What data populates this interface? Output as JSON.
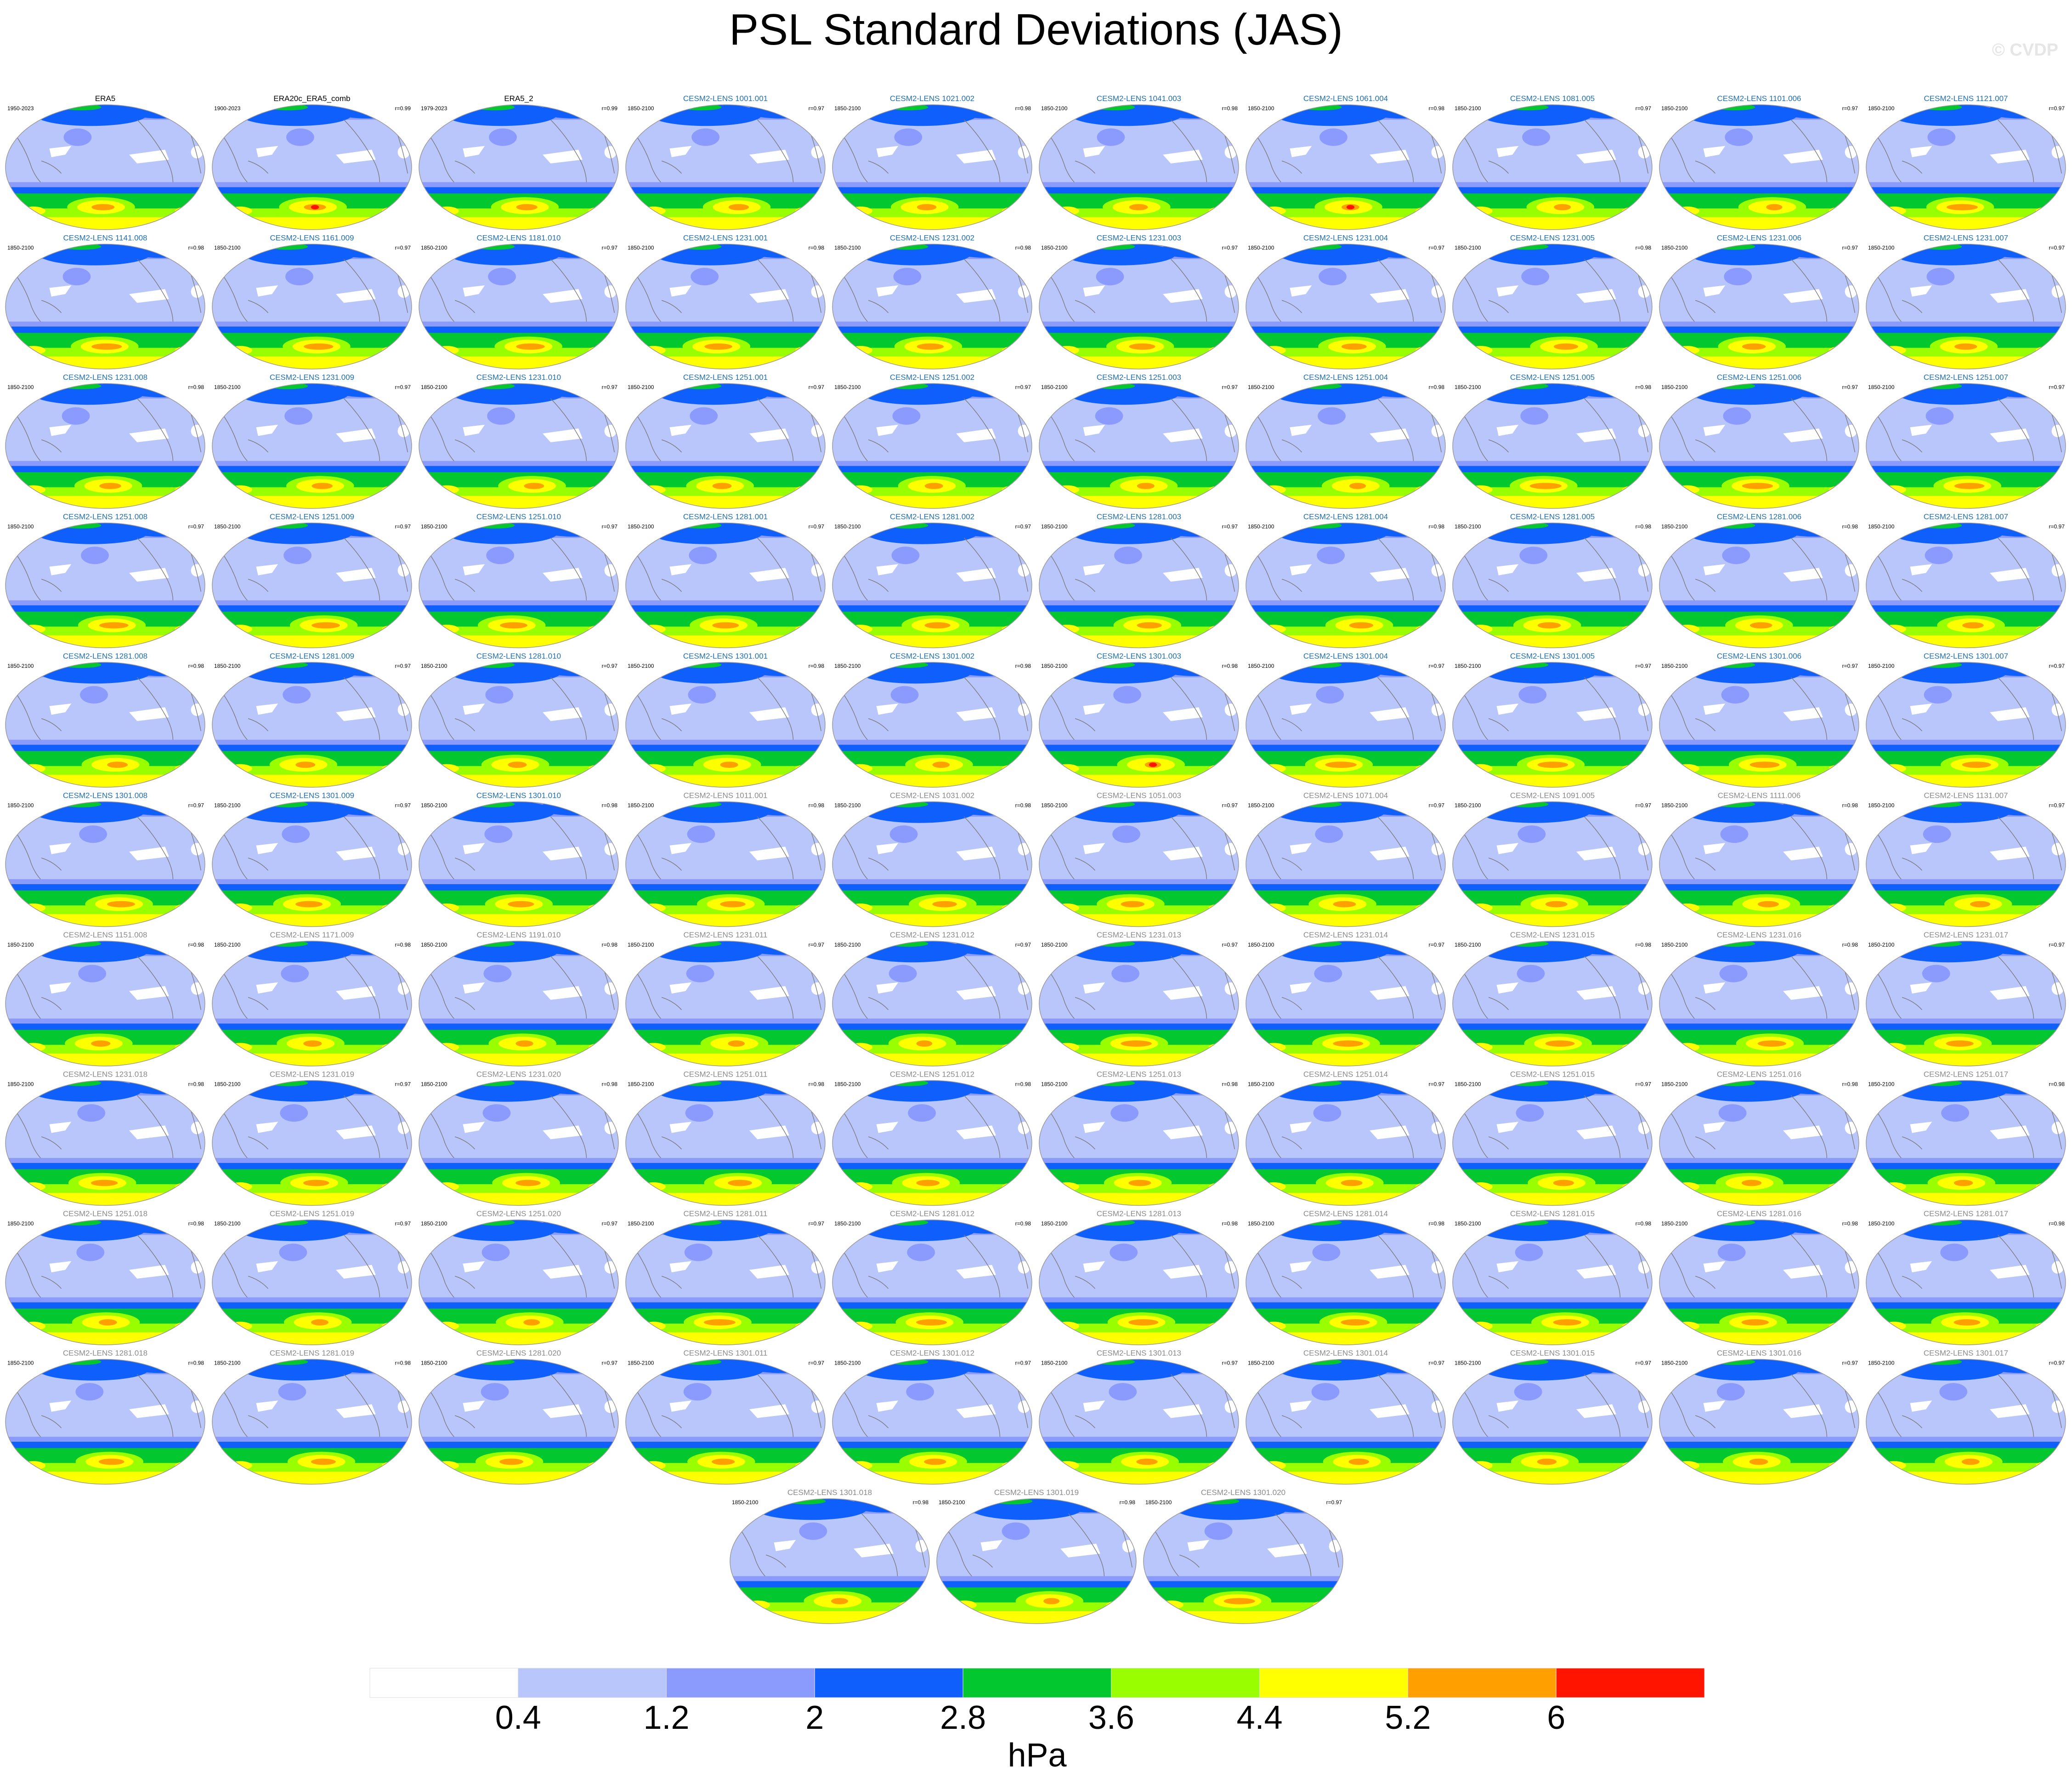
{
  "title": "PSL Standard Deviations (JAS)",
  "copyright": "© CVDP",
  "colors": {
    "land": "#ffffff",
    "coast": "#7a7a7a",
    "obs_title": "#000000",
    "model_title": "#1f6fb0",
    "model_title_faded": "#8a8a8a"
  },
  "chart_data": {
    "type": "heatmap",
    "variable": "PSL standard deviation",
    "season": "JAS",
    "colorbar": {
      "label": "hPa",
      "ticks": [
        "0.4",
        "1.2",
        "2",
        "2.8",
        "3.6",
        "4.4",
        "5.2",
        "6"
      ],
      "levels": [
        0.4,
        1.2,
        2,
        2.8,
        3.6,
        4.4,
        5.2,
        6
      ],
      "colors": [
        "#ffffff",
        "#b8c6fb",
        "#8a9bfd",
        "#0f5ffd",
        "#03c72e",
        "#99ff00",
        "#ffff00",
        "#ffa000",
        "#ff1400"
      ]
    },
    "panels": [
      {
        "title": "ERA5",
        "period": "1950-2023",
        "r": "",
        "kind": "obs"
      },
      {
        "title": "ERA20c_ERA5_comb",
        "period": "1900-2023",
        "r": "r=0.99",
        "kind": "obs"
      },
      {
        "title": "ERA5_2",
        "period": "1979-2023",
        "r": "r=0.99",
        "kind": "obs"
      },
      {
        "title": "CESM2-LENS 1001.001",
        "period": "1850-2100",
        "r": "r=0.97",
        "kind": "model"
      },
      {
        "title": "CESM2-LENS 1021.002",
        "period": "1850-2100",
        "r": "r=0.98",
        "kind": "model"
      },
      {
        "title": "CESM2-LENS 1041.003",
        "period": "1850-2100",
        "r": "r=0.98",
        "kind": "model"
      },
      {
        "title": "CESM2-LENS 1061.004",
        "period": "1850-2100",
        "r": "r=0.98",
        "kind": "model"
      },
      {
        "title": "CESM2-LENS 1081.005",
        "period": "1850-2100",
        "r": "r=0.97",
        "kind": "model"
      },
      {
        "title": "CESM2-LENS 1101.006",
        "period": "1850-2100",
        "r": "r=0.97",
        "kind": "model"
      },
      {
        "title": "CESM2-LENS 1121.007",
        "period": "1850-2100",
        "r": "r=0.97",
        "kind": "model"
      },
      {
        "title": "CESM2-LENS 1141.008",
        "period": "1850-2100",
        "r": "r=0.98",
        "kind": "model"
      },
      {
        "title": "CESM2-LENS 1161.009",
        "period": "1850-2100",
        "r": "r=0.97",
        "kind": "model"
      },
      {
        "title": "CESM2-LENS 1181.010",
        "period": "1850-2100",
        "r": "r=0.97",
        "kind": "model"
      },
      {
        "title": "CESM2-LENS 1231.001",
        "period": "1850-2100",
        "r": "r=0.98",
        "kind": "model"
      },
      {
        "title": "CESM2-LENS 1231.002",
        "period": "1850-2100",
        "r": "r=0.98",
        "kind": "model"
      },
      {
        "title": "CESM2-LENS 1231.003",
        "period": "1850-2100",
        "r": "r=0.97",
        "kind": "model"
      },
      {
        "title": "CESM2-LENS 1231.004",
        "period": "1850-2100",
        "r": "r=0.97",
        "kind": "model"
      },
      {
        "title": "CESM2-LENS 1231.005",
        "period": "1850-2100",
        "r": "r=0.98",
        "kind": "model"
      },
      {
        "title": "CESM2-LENS 1231.006",
        "period": "1850-2100",
        "r": "r=0.97",
        "kind": "model"
      },
      {
        "title": "CESM2-LENS 1231.007",
        "period": "1850-2100",
        "r": "r=0.97",
        "kind": "model"
      },
      {
        "title": "CESM2-LENS 1231.008",
        "period": "1850-2100",
        "r": "r=0.98",
        "kind": "model"
      },
      {
        "title": "CESM2-LENS 1231.009",
        "period": "1850-2100",
        "r": "r=0.97",
        "kind": "model"
      },
      {
        "title": "CESM2-LENS 1231.010",
        "period": "1850-2100",
        "r": "r=0.97",
        "kind": "model"
      },
      {
        "title": "CESM2-LENS 1251.001",
        "period": "1850-2100",
        "r": "r=0.97",
        "kind": "model"
      },
      {
        "title": "CESM2-LENS 1251.002",
        "period": "1850-2100",
        "r": "r=0.97",
        "kind": "model"
      },
      {
        "title": "CESM2-LENS 1251.003",
        "period": "1850-2100",
        "r": "r=0.97",
        "kind": "model"
      },
      {
        "title": "CESM2-LENS 1251.004",
        "period": "1850-2100",
        "r": "r=0.98",
        "kind": "model"
      },
      {
        "title": "CESM2-LENS 1251.005",
        "period": "1850-2100",
        "r": "r=0.98",
        "kind": "model"
      },
      {
        "title": "CESM2-LENS 1251.006",
        "period": "1850-2100",
        "r": "r=0.97",
        "kind": "model"
      },
      {
        "title": "CESM2-LENS 1251.007",
        "period": "1850-2100",
        "r": "r=0.97",
        "kind": "model"
      },
      {
        "title": "CESM2-LENS 1251.008",
        "period": "1850-2100",
        "r": "r=0.97",
        "kind": "model"
      },
      {
        "title": "CESM2-LENS 1251.009",
        "period": "1850-2100",
        "r": "r=0.97",
        "kind": "model"
      },
      {
        "title": "CESM2-LENS 1251.010",
        "period": "1850-2100",
        "r": "r=0.97",
        "kind": "model"
      },
      {
        "title": "CESM2-LENS 1281.001",
        "period": "1850-2100",
        "r": "r=0.97",
        "kind": "model"
      },
      {
        "title": "CESM2-LENS 1281.002",
        "period": "1850-2100",
        "r": "r=0.97",
        "kind": "model"
      },
      {
        "title": "CESM2-LENS 1281.003",
        "period": "1850-2100",
        "r": "r=0.97",
        "kind": "model"
      },
      {
        "title": "CESM2-LENS 1281.004",
        "period": "1850-2100",
        "r": "r=0.98",
        "kind": "model"
      },
      {
        "title": "CESM2-LENS 1281.005",
        "period": "1850-2100",
        "r": "r=0.98",
        "kind": "model"
      },
      {
        "title": "CESM2-LENS 1281.006",
        "period": "1850-2100",
        "r": "r=0.98",
        "kind": "model"
      },
      {
        "title": "CESM2-LENS 1281.007",
        "period": "1850-2100",
        "r": "r=0.97",
        "kind": "model"
      },
      {
        "title": "CESM2-LENS 1281.008",
        "period": "1850-2100",
        "r": "r=0.98",
        "kind": "model"
      },
      {
        "title": "CESM2-LENS 1281.009",
        "period": "1850-2100",
        "r": "r=0.97",
        "kind": "model"
      },
      {
        "title": "CESM2-LENS 1281.010",
        "period": "1850-2100",
        "r": "r=0.97",
        "kind": "model"
      },
      {
        "title": "CESM2-LENS 1301.001",
        "period": "1850-2100",
        "r": "r=0.98",
        "kind": "model"
      },
      {
        "title": "CESM2-LENS 1301.002",
        "period": "1850-2100",
        "r": "r=0.98",
        "kind": "model"
      },
      {
        "title": "CESM2-LENS 1301.003",
        "period": "1850-2100",
        "r": "r=0.98",
        "kind": "model"
      },
      {
        "title": "CESM2-LENS 1301.004",
        "period": "1850-2100",
        "r": "r=0.97",
        "kind": "model"
      },
      {
        "title": "CESM2-LENS 1301.005",
        "period": "1850-2100",
        "r": "r=0.97",
        "kind": "model"
      },
      {
        "title": "CESM2-LENS 1301.006",
        "period": "1850-2100",
        "r": "r=0.97",
        "kind": "model"
      },
      {
        "title": "CESM2-LENS 1301.007",
        "period": "1850-2100",
        "r": "r=0.97",
        "kind": "model"
      },
      {
        "title": "CESM2-LENS 1301.008",
        "period": "1850-2100",
        "r": "r=0.97",
        "kind": "model"
      },
      {
        "title": "CESM2-LENS 1301.009",
        "period": "1850-2100",
        "r": "r=0.97",
        "kind": "model"
      },
      {
        "title": "CESM2-LENS 1301.010",
        "period": "1850-2100",
        "r": "r=0.98",
        "kind": "model"
      },
      {
        "title": "CESM2-LENS 1011.001",
        "period": "1850-2100",
        "r": "r=0.98",
        "kind": "model_faded"
      },
      {
        "title": "CESM2-LENS 1031.002",
        "period": "1850-2100",
        "r": "r=0.98",
        "kind": "model_faded"
      },
      {
        "title": "CESM2-LENS 1051.003",
        "period": "1850-2100",
        "r": "r=0.97",
        "kind": "model_faded"
      },
      {
        "title": "CESM2-LENS 1071.004",
        "period": "1850-2100",
        "r": "r=0.97",
        "kind": "model_faded"
      },
      {
        "title": "CESM2-LENS 1091.005",
        "period": "1850-2100",
        "r": "r=0.97",
        "kind": "model_faded"
      },
      {
        "title": "CESM2-LENS 1111.006",
        "period": "1850-2100",
        "r": "r=0.98",
        "kind": "model_faded"
      },
      {
        "title": "CESM2-LENS 1131.007",
        "period": "1850-2100",
        "r": "r=0.97",
        "kind": "model_faded"
      },
      {
        "title": "CESM2-LENS 1151.008",
        "period": "1850-2100",
        "r": "r=0.98",
        "kind": "model_faded"
      },
      {
        "title": "CESM2-LENS 1171.009",
        "period": "1850-2100",
        "r": "r=0.98",
        "kind": "model_faded"
      },
      {
        "title": "CESM2-LENS 1191.010",
        "period": "1850-2100",
        "r": "r=0.98",
        "kind": "model_faded"
      },
      {
        "title": "CESM2-LENS 1231.011",
        "period": "1850-2100",
        "r": "r=0.97",
        "kind": "model_faded"
      },
      {
        "title": "CESM2-LENS 1231.012",
        "period": "1850-2100",
        "r": "r=0.97",
        "kind": "model_faded"
      },
      {
        "title": "CESM2-LENS 1231.013",
        "period": "1850-2100",
        "r": "r=0.97",
        "kind": "model_faded"
      },
      {
        "title": "CESM2-LENS 1231.014",
        "period": "1850-2100",
        "r": "r=0.97",
        "kind": "model_faded"
      },
      {
        "title": "CESM2-LENS 1231.015",
        "period": "1850-2100",
        "r": "r=0.98",
        "kind": "model_faded"
      },
      {
        "title": "CESM2-LENS 1231.016",
        "period": "1850-2100",
        "r": "r=0.98",
        "kind": "model_faded"
      },
      {
        "title": "CESM2-LENS 1231.017",
        "period": "1850-2100",
        "r": "r=0.97",
        "kind": "model_faded"
      },
      {
        "title": "CESM2-LENS 1231.018",
        "period": "1850-2100",
        "r": "r=0.98",
        "kind": "model_faded"
      },
      {
        "title": "CESM2-LENS 1231.019",
        "period": "1850-2100",
        "r": "r=0.97",
        "kind": "model_faded"
      },
      {
        "title": "CESM2-LENS 1231.020",
        "period": "1850-2100",
        "r": "r=0.98",
        "kind": "model_faded"
      },
      {
        "title": "CESM2-LENS 1251.011",
        "period": "1850-2100",
        "r": "r=0.98",
        "kind": "model_faded"
      },
      {
        "title": "CESM2-LENS 1251.012",
        "period": "1850-2100",
        "r": "r=0.98",
        "kind": "model_faded"
      },
      {
        "title": "CESM2-LENS 1251.013",
        "period": "1850-2100",
        "r": "r=0.98",
        "kind": "model_faded"
      },
      {
        "title": "CESM2-LENS 1251.014",
        "period": "1850-2100",
        "r": "r=0.97",
        "kind": "model_faded"
      },
      {
        "title": "CESM2-LENS 1251.015",
        "period": "1850-2100",
        "r": "r=0.97",
        "kind": "model_faded"
      },
      {
        "title": "CESM2-LENS 1251.016",
        "period": "1850-2100",
        "r": "r=0.98",
        "kind": "model_faded"
      },
      {
        "title": "CESM2-LENS 1251.017",
        "period": "1850-2100",
        "r": "r=0.98",
        "kind": "model_faded"
      },
      {
        "title": "CESM2-LENS 1251.018",
        "period": "1850-2100",
        "r": "r=0.98",
        "kind": "model_faded"
      },
      {
        "title": "CESM2-LENS 1251.019",
        "period": "1850-2100",
        "r": "r=0.97",
        "kind": "model_faded"
      },
      {
        "title": "CESM2-LENS 1251.020",
        "period": "1850-2100",
        "r": "r=0.97",
        "kind": "model_faded"
      },
      {
        "title": "CESM2-LENS 1281.011",
        "period": "1850-2100",
        "r": "r=0.97",
        "kind": "model_faded"
      },
      {
        "title": "CESM2-LENS 1281.012",
        "period": "1850-2100",
        "r": "r=0.98",
        "kind": "model_faded"
      },
      {
        "title": "CESM2-LENS 1281.013",
        "period": "1850-2100",
        "r": "r=0.98",
        "kind": "model_faded"
      },
      {
        "title": "CESM2-LENS 1281.014",
        "period": "1850-2100",
        "r": "r=0.98",
        "kind": "model_faded"
      },
      {
        "title": "CESM2-LENS 1281.015",
        "period": "1850-2100",
        "r": "r=0.98",
        "kind": "model_faded"
      },
      {
        "title": "CESM2-LENS 1281.016",
        "period": "1850-2100",
        "r": "r=0.98",
        "kind": "model_faded"
      },
      {
        "title": "CESM2-LENS 1281.017",
        "period": "1850-2100",
        "r": "r=0.98",
        "kind": "model_faded"
      },
      {
        "title": "CESM2-LENS 1281.018",
        "period": "1850-2100",
        "r": "r=0.98",
        "kind": "model_faded"
      },
      {
        "title": "CESM2-LENS 1281.019",
        "period": "1850-2100",
        "r": "r=0.98",
        "kind": "model_faded"
      },
      {
        "title": "CESM2-LENS 1281.020",
        "period": "1850-2100",
        "r": "r=0.97",
        "kind": "model_faded"
      },
      {
        "title": "CESM2-LENS 1301.011",
        "period": "1850-2100",
        "r": "r=0.97",
        "kind": "model_faded"
      },
      {
        "title": "CESM2-LENS 1301.012",
        "period": "1850-2100",
        "r": "r=0.97",
        "kind": "model_faded"
      },
      {
        "title": "CESM2-LENS 1301.013",
        "period": "1850-2100",
        "r": "r=0.97",
        "kind": "model_faded"
      },
      {
        "title": "CESM2-LENS 1301.014",
        "period": "1850-2100",
        "r": "r=0.97",
        "kind": "model_faded"
      },
      {
        "title": "CESM2-LENS 1301.015",
        "period": "1850-2100",
        "r": "r=0.97",
        "kind": "model_faded"
      },
      {
        "title": "CESM2-LENS 1301.016",
        "period": "1850-2100",
        "r": "r=0.97",
        "kind": "model_faded"
      },
      {
        "title": "CESM2-LENS 1301.017",
        "period": "1850-2100",
        "r": "r=0.97",
        "kind": "model_faded"
      },
      {
        "title": "CESM2-LENS 1301.018",
        "period": "1850-2100",
        "r": "r=0.98",
        "kind": "model_faded"
      },
      {
        "title": "CESM2-LENS 1301.019",
        "period": "1850-2100",
        "r": "r=0.98",
        "kind": "model_faded"
      },
      {
        "title": "CESM2-LENS 1301.020",
        "period": "1850-2100",
        "r": "r=0.97",
        "kind": "model_faded"
      }
    ]
  }
}
